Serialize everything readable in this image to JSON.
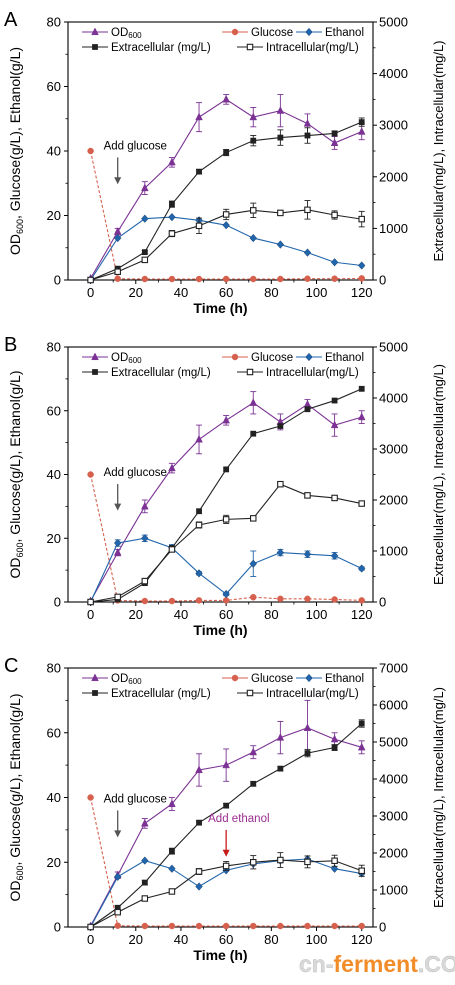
{
  "chart_data": [
    {
      "type": "line",
      "panel_label": "A",
      "xlabel": "Time (h)",
      "ylabel_left": "OD600, Glucose(g/L), Ethanol(g/L)",
      "ylabel_right": "Extracellular(mg/L), Intracellular(mg/L)",
      "xlim": [
        -10,
        125
      ],
      "ylim_left": [
        0,
        80
      ],
      "ylim_right": [
        0,
        5000
      ],
      "x_ticks": [
        0,
        20,
        40,
        60,
        80,
        100,
        120
      ],
      "y_left_ticks": [
        0,
        20,
        40,
        60,
        80
      ],
      "y_right_ticks": [
        0,
        1000,
        2000,
        3000,
        4000,
        5000
      ],
      "annotations": [
        {
          "text": "Add glucose",
          "arrow_x": 12,
          "arrow_y_top": 38,
          "arrow_y_bottom": 30,
          "color": "#555555"
        }
      ],
      "series": [
        {
          "name": "OD600",
          "axis": "left",
          "color": "#7b3294",
          "marker": "triangle",
          "x": [
            0,
            12,
            24,
            36,
            48,
            60,
            72,
            84,
            96,
            108,
            120
          ],
          "y": [
            0.5,
            15,
            28.5,
            36.5,
            50.5,
            56,
            50.5,
            52.5,
            48.5,
            42.5,
            46
          ],
          "err": [
            0,
            1,
            2,
            1.5,
            4.5,
            1.5,
            3,
            5,
            3,
            2,
            2.5
          ]
        },
        {
          "name": "Glucose",
          "axis": "left",
          "color": "#d6604d",
          "marker": "circle",
          "x": [
            0,
            12,
            24,
            36,
            48,
            60,
            72,
            84,
            96,
            108,
            120
          ],
          "y": [
            40,
            0.4,
            0.3,
            0.3,
            0.3,
            0.3,
            0.3,
            0.3,
            0.4,
            0.4,
            0.5
          ],
          "err": []
        },
        {
          "name": "Ethanol",
          "axis": "left",
          "color": "#2166ac",
          "marker": "diamond",
          "x": [
            0,
            12,
            24,
            36,
            48,
            60,
            72,
            84,
            96,
            108,
            120
          ],
          "y": [
            0,
            13,
            19,
            19.5,
            18.5,
            17,
            13,
            11,
            8.5,
            5.5,
            4.5
          ],
          "err": []
        },
        {
          "name": "Extracellular (mg/L)",
          "axis": "right",
          "color": "#222222",
          "marker": "square-filled",
          "x": [
            0,
            12,
            24,
            36,
            48,
            60,
            72,
            84,
            96,
            108,
            120
          ],
          "y": [
            0,
            220,
            540,
            1470,
            2100,
            2470,
            2700,
            2760,
            2800,
            2840,
            3060
          ],
          "err": [
            0,
            30,
            30,
            60,
            40,
            60,
            100,
            150,
            150,
            50,
            80
          ]
        },
        {
          "name": "Intracellular(mg/L)",
          "axis": "right",
          "color": "#222222",
          "marker": "square-open",
          "x": [
            0,
            12,
            24,
            36,
            48,
            60,
            72,
            84,
            96,
            108,
            120
          ],
          "y": [
            0,
            160,
            390,
            900,
            1050,
            1270,
            1350,
            1300,
            1360,
            1260,
            1180
          ],
          "err": [
            0,
            20,
            40,
            60,
            150,
            100,
            140,
            50,
            180,
            80,
            150
          ]
        }
      ]
    },
    {
      "type": "line",
      "panel_label": "B",
      "xlabel": "Time (h)",
      "ylabel_left": "OD600, Glucose(g/L), Ethanol(g/L)",
      "ylabel_right": "Extracellular(mg/L), Intracellular(mg/L)",
      "xlim": [
        -10,
        125
      ],
      "ylim_left": [
        0,
        80
      ],
      "ylim_right": [
        0,
        5000
      ],
      "x_ticks": [
        0,
        20,
        40,
        60,
        80,
        100,
        120
      ],
      "y_left_ticks": [
        0,
        20,
        40,
        60,
        80
      ],
      "y_right_ticks": [
        0,
        1000,
        2000,
        3000,
        4000,
        5000
      ],
      "annotations": [
        {
          "text": "Add glucose",
          "arrow_x": 12,
          "arrow_y_top": 37,
          "arrow_y_bottom": 29,
          "color": "#555555"
        }
      ],
      "series": [
        {
          "name": "OD600",
          "axis": "left",
          "color": "#7b3294",
          "marker": "triangle",
          "x": [
            0,
            12,
            24,
            36,
            48,
            60,
            72,
            84,
            96,
            108,
            120
          ],
          "y": [
            0.3,
            15.5,
            30,
            42,
            51,
            57,
            62.5,
            56.5,
            62,
            55.5,
            58
          ],
          "err": [
            0,
            1,
            2,
            1.5,
            4.5,
            1.5,
            3.5,
            2.5,
            1.5,
            3.5,
            2
          ]
        },
        {
          "name": "Glucose",
          "axis": "left",
          "color": "#d6604d",
          "marker": "circle",
          "x": [
            0,
            12,
            24,
            36,
            48,
            60,
            72,
            84,
            96,
            108,
            120
          ],
          "y": [
            40,
            0.5,
            0.3,
            0.3,
            0.5,
            0.5,
            1.5,
            1.0,
            1.0,
            0.8,
            0.5
          ],
          "err": []
        },
        {
          "name": "Ethanol",
          "axis": "left",
          "color": "#2166ac",
          "marker": "diamond",
          "x": [
            0,
            12,
            24,
            36,
            48,
            60,
            72,
            84,
            96,
            108,
            120
          ],
          "y": [
            0,
            18.5,
            20,
            17,
            9,
            2.5,
            12,
            15.5,
            15,
            14.5,
            10.5
          ],
          "err": [
            0,
            1,
            1,
            1,
            0.5,
            0.5,
            4,
            1,
            1,
            1,
            0.5
          ]
        },
        {
          "name": "Extracellular (mg/L)",
          "axis": "right",
          "color": "#222222",
          "marker": "square-filled",
          "x": [
            0,
            12,
            24,
            36,
            48,
            60,
            72,
            84,
            96,
            108,
            120
          ],
          "y": [
            0,
            50,
            370,
            1060,
            1780,
            2600,
            3300,
            3450,
            3780,
            3950,
            4180
          ],
          "err": []
        },
        {
          "name": "Intracellular(mg/L)",
          "axis": "right",
          "color": "#222222",
          "marker": "square-open",
          "x": [
            0,
            12,
            24,
            36,
            48,
            60,
            72,
            84,
            96,
            108,
            120
          ],
          "y": [
            0,
            100,
            410,
            1030,
            1510,
            1620,
            1640,
            2310,
            2090,
            2040,
            1930
          ],
          "err": [
            0,
            20,
            30,
            40,
            60,
            80,
            40,
            40,
            50,
            40,
            40
          ]
        }
      ]
    },
    {
      "type": "line",
      "panel_label": "C",
      "xlabel": "Time (h)",
      "ylabel_left": "OD600, Glucose(g/L), Ethanol(g/L)",
      "ylabel_right": "Extracellular(mg/L), Intracellular(mg/L)",
      "xlim": [
        -10,
        125
      ],
      "ylim_left": [
        0,
        80
      ],
      "ylim_right": [
        0,
        7000
      ],
      "x_ticks": [
        0,
        20,
        40,
        60,
        80,
        100,
        120
      ],
      "y_left_ticks": [
        0,
        20,
        40,
        60,
        80
      ],
      "y_right_ticks": [
        0,
        1000,
        2000,
        3000,
        4000,
        5000,
        6000,
        7000
      ],
      "annotations": [
        {
          "text": "Add glucose",
          "arrow_x": 12,
          "arrow_y_top": 36,
          "arrow_y_bottom": 28,
          "color": "#555555"
        },
        {
          "text": "Add ethanol",
          "arrow_x": 60,
          "arrow_y_top": 30,
          "arrow_y_bottom": 22,
          "color": "#c51b1b",
          "text_color": "#9b2d8f"
        }
      ],
      "series": [
        {
          "name": "OD600",
          "axis": "left",
          "color": "#7b3294",
          "marker": "triangle",
          "x": [
            0,
            12,
            24,
            36,
            48,
            60,
            72,
            84,
            96,
            108,
            120
          ],
          "y": [
            0.3,
            16,
            32,
            38,
            48.5,
            50,
            54,
            58.5,
            61.5,
            58,
            55.5
          ],
          "err": [
            0,
            1,
            1.5,
            2,
            5,
            5,
            2,
            5,
            8.5,
            2,
            2
          ]
        },
        {
          "name": "Glucose",
          "axis": "left",
          "color": "#d6604d",
          "marker": "circle",
          "x": [
            0,
            12,
            24,
            36,
            48,
            60,
            72,
            84,
            96,
            108,
            120
          ],
          "y": [
            40,
            0.4,
            0.3,
            0.3,
            0.3,
            0.3,
            0.3,
            0.3,
            0.3,
            0.3,
            0.3
          ],
          "err": []
        },
        {
          "name": "Ethanol",
          "axis": "left",
          "color": "#2166ac",
          "marker": "diamond",
          "x": [
            0,
            12,
            24,
            36,
            48,
            60,
            72,
            84,
            96,
            108,
            120
          ],
          "y": [
            0,
            15.5,
            20.5,
            18,
            12.5,
            17.5,
            19.5,
            20.5,
            21,
            18,
            16.5
          ],
          "err": []
        },
        {
          "name": "Extracellular (mg/L)",
          "axis": "right",
          "color": "#222222",
          "marker": "square-filled",
          "x": [
            0,
            12,
            24,
            36,
            48,
            60,
            72,
            84,
            96,
            108,
            120
          ],
          "y": [
            0,
            520,
            1200,
            2050,
            2820,
            3280,
            3870,
            4280,
            4700,
            4850,
            5500
          ],
          "err": [
            0,
            60,
            60,
            80,
            60,
            60,
            60,
            60,
            100,
            80,
            100
          ]
        },
        {
          "name": "Intracellular(mg/L)",
          "axis": "right",
          "color": "#222222",
          "marker": "square-open",
          "x": [
            0,
            12,
            24,
            36,
            48,
            60,
            72,
            84,
            96,
            108,
            120
          ],
          "y": [
            0,
            400,
            770,
            960,
            1500,
            1650,
            1750,
            1810,
            1760,
            1790,
            1520
          ],
          "err": [
            0,
            40,
            60,
            60,
            80,
            120,
            180,
            200,
            160,
            150,
            150
          ]
        }
      ]
    }
  ],
  "watermark": "cn-ferment.COM",
  "colors": {
    "od600": "#7b3294",
    "glucose": "#d6604d",
    "ethanol": "#2166ac",
    "extracellular": "#222222",
    "intracellular": "#222222",
    "watermark_cn": "#d9d9d9",
    "watermark_ferment": "#f28c28"
  }
}
